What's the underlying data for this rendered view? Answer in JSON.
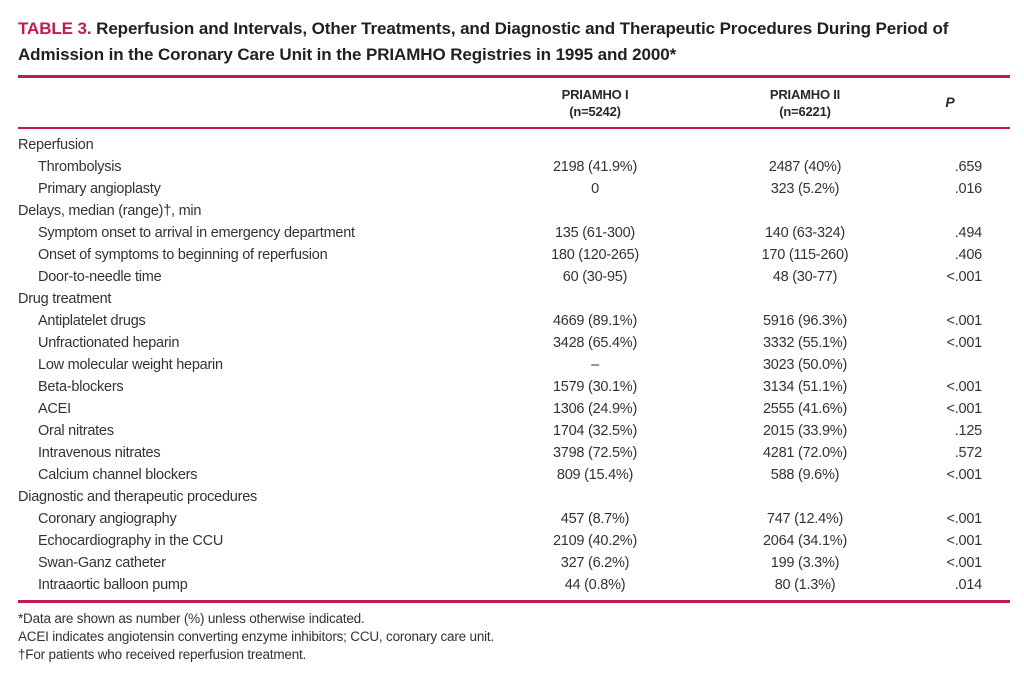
{
  "colors": {
    "accent": "#c31a52",
    "title_ink": "#231f20",
    "body_ink": "#343233"
  },
  "title": {
    "label": "TABLE 3.",
    "caption": " Reperfusion and Intervals, Other Treatments, and Diagnostic and Therapeutic Procedures During Period of Admission in the Coronary Care Unit in the PRIAMHO Registries in 1995 and 2000*"
  },
  "columns": [
    {
      "line1": "PRIAMHO I",
      "line2": "(n=5242)"
    },
    {
      "line1": "PRIAMHO II",
      "line2": "(n=6221)"
    },
    {
      "label": "P"
    }
  ],
  "rows": [
    {
      "label": "Reperfusion",
      "indent": 0,
      "c1": "",
      "c2": "",
      "p": ""
    },
    {
      "label": "Thrombolysis",
      "indent": 1,
      "c1": "2198 (41.9%)",
      "c2": "2487 (40%)",
      "p": ".659"
    },
    {
      "label": "Primary angioplasty",
      "indent": 1,
      "c1": "0",
      "c2": "323 (5.2%)",
      "p": ".016"
    },
    {
      "label": "Delays, median (range)†, min",
      "indent": 0,
      "c1": "",
      "c2": "",
      "p": ""
    },
    {
      "label": "Symptom onset to arrival in emergency department",
      "indent": 1,
      "c1": "135 (61-300)",
      "c2": "140 (63-324)",
      "p": ".494"
    },
    {
      "label": "Onset of symptoms to beginning of reperfusion",
      "indent": 1,
      "c1": "180 (120-265)",
      "c2": "170 (115-260)",
      "p": ".406"
    },
    {
      "label": "Door-to-needle time",
      "indent": 1,
      "c1": "60 (30-95)",
      "c2": "48 (30-77)",
      "p": "<.001"
    },
    {
      "label": "Drug treatment",
      "indent": 0,
      "c1": "",
      "c2": "",
      "p": ""
    },
    {
      "label": "Antiplatelet drugs",
      "indent": 1,
      "c1": "4669 (89.1%)",
      "c2": "5916 (96.3%)",
      "p": "<.001"
    },
    {
      "label": "Unfractionated heparin",
      "indent": 1,
      "c1": "3428 (65.4%)",
      "c2": "3332 (55.1%)",
      "p": "<.001"
    },
    {
      "label": "Low molecular weight heparin",
      "indent": 1,
      "c1": "–",
      "c2": "3023 (50.0%)",
      "p": ""
    },
    {
      "label": "Beta-blockers",
      "indent": 1,
      "c1": "1579 (30.1%)",
      "c2": "3134 (51.1%)",
      "p": "<.001"
    },
    {
      "label": "ACEI",
      "indent": 1,
      "c1": "1306 (24.9%)",
      "c2": "2555 (41.6%)",
      "p": "<.001"
    },
    {
      "label": "Oral nitrates",
      "indent": 1,
      "c1": "1704 (32.5%)",
      "c2": "2015 (33.9%)",
      "p": ".125"
    },
    {
      "label": "Intravenous nitrates",
      "indent": 1,
      "c1": "3798 (72.5%)",
      "c2": "4281 (72.0%)",
      "p": ".572"
    },
    {
      "label": "Calcium channel blockers",
      "indent": 1,
      "c1": "809 (15.4%)",
      "c2": "588 (9.6%)",
      "p": "<.001"
    },
    {
      "label": "Diagnostic and therapeutic procedures",
      "indent": 0,
      "c1": "",
      "c2": "",
      "p": ""
    },
    {
      "label": "Coronary angiography",
      "indent": 1,
      "c1": "457 (8.7%)",
      "c2": "747 (12.4%)",
      "p": "<.001"
    },
    {
      "label": "Echocardiography in the CCU",
      "indent": 1,
      "c1": "2109 (40.2%)",
      "c2": "2064 (34.1%)",
      "p": "<.001"
    },
    {
      "label": "Swan-Ganz catheter",
      "indent": 1,
      "c1": "327 (6.2%)",
      "c2": "199 (3.3%)",
      "p": "<.001"
    },
    {
      "label": "Intraaortic balloon pump",
      "indent": 1,
      "c1": "44 (0.8%)",
      "c2": "80 (1.3%)",
      "p": ".014"
    }
  ],
  "footnotes": [
    "*Data are shown as number (%) unless otherwise indicated.",
    "ACEI indicates angiotensin converting enzyme inhibitors; CCU, coronary care unit.",
    "†For patients who received reperfusion treatment."
  ]
}
